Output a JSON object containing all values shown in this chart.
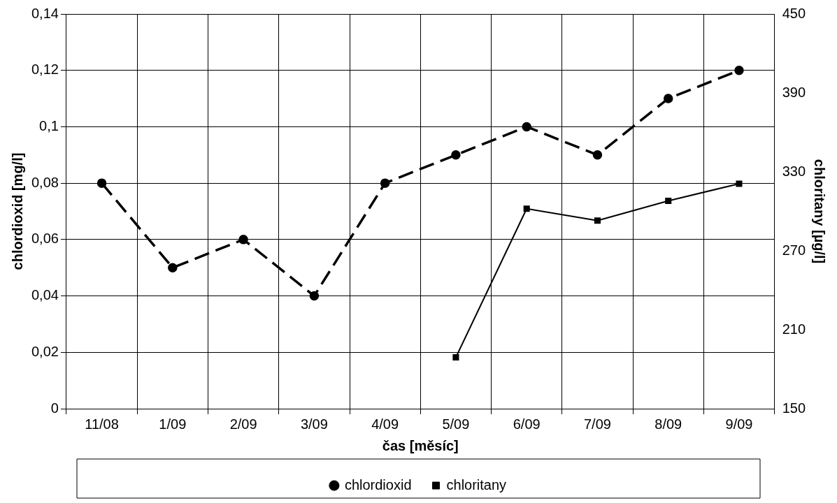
{
  "chart_data": {
    "type": "line",
    "xlabel": "čas [měsíc]",
    "ylabel": "chlordioxid [mg/l]",
    "y2label": "chloritany [µg/l]",
    "categories": [
      "11/08",
      "1/09",
      "2/09",
      "3/09",
      "4/09",
      "5/09",
      "6/09",
      "7/09",
      "8/09",
      "9/09"
    ],
    "series": [
      {
        "name": "chlordioxid",
        "color": "#000000",
        "marker": "circle",
        "line_style": "dashed",
        "values": [
          0.08,
          0.05,
          0.06,
          0.04,
          0.08,
          0.09,
          0.1,
          0.09,
          0.11,
          0.12
        ]
      },
      {
        "name": "chloritany",
        "color": "#000000",
        "marker": "square",
        "line_style": "solid",
        "axis": "y2",
        "values": [
          null,
          null,
          null,
          null,
          null,
          189,
          302,
          293,
          308,
          321
        ]
      }
    ],
    "ylim": [
      0,
      0.14
    ],
    "yticks": [
      {
        "value": 0,
        "label": "0"
      },
      {
        "value": 0.02,
        "label": "0,02"
      },
      {
        "value": 0.04,
        "label": "0,04"
      },
      {
        "value": 0.06,
        "label": "0,06"
      },
      {
        "value": 0.08,
        "label": "0,08"
      },
      {
        "value": 0.1,
        "label": "0,1"
      },
      {
        "value": 0.12,
        "label": "0,12"
      },
      {
        "value": 0.14,
        "label": "0,14"
      }
    ],
    "y2lim": [
      150,
      450
    ],
    "y2ticks": [
      150,
      210,
      270,
      330,
      390,
      450
    ],
    "grid": true,
    "legend": "bottom"
  }
}
